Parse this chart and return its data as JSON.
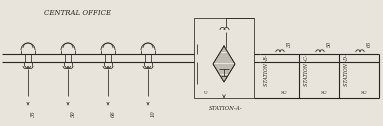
{
  "bg_color": "#e8e4dc",
  "line_color": "#2a2520",
  "central_office_label": "CENTRAL OFFICE",
  "station_a_label": "STATION-A-",
  "station_b_label": "STATION -B-",
  "station_c_label": "STATION -C-",
  "station_d_label": "STATION -D-",
  "co_freqs": [
    "35",
    "50",
    "66",
    "10"
  ],
  "st_b_freqs": [
    "33",
    "50"
  ],
  "st_c_freqs": [
    "66"
  ],
  "st_d_freqs": [
    "10"
  ],
  "figsize": [
    3.83,
    1.26
  ],
  "dpi": 100
}
